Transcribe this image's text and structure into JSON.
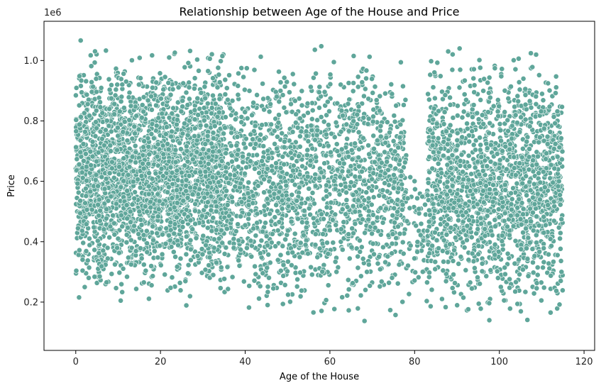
{
  "chart_data": {
    "type": "scatter",
    "title": "Relationship between Age of the House and Price",
    "xlabel": "Age of the House",
    "ylabel": "Price",
    "y_offset_label": "1e6",
    "xlim": [
      -7.5,
      122.5
    ],
    "ylim": [
      40000,
      1130000
    ],
    "x_ticks": [
      0,
      20,
      40,
      60,
      80,
      100,
      120
    ],
    "x_tick_labels": [
      "0",
      "20",
      "40",
      "60",
      "80",
      "100",
      "120"
    ],
    "y_ticks": [
      200000,
      400000,
      600000,
      800000,
      1000000
    ],
    "y_tick_labels": [
      "0.2",
      "0.4",
      "0.6",
      "0.8",
      "1.0"
    ],
    "grid": false,
    "marker_color": "#5fa69a",
    "marker_edge_color": "#ffffff",
    "point_density": [
      {
        "age_range": [
          0,
          35
        ],
        "price_range": [
          150000,
          1090000
        ],
        "density": "very high"
      },
      {
        "age_range": [
          35,
          78
        ],
        "price_range": [
          90000,
          1090000
        ],
        "density": "high"
      },
      {
        "age_range": [
          78,
          83
        ],
        "price_range": [
          150000,
          700000
        ],
        "density": "low"
      },
      {
        "age_range": [
          83,
          115
        ],
        "price_range": [
          80000,
          1090000
        ],
        "density": "high"
      }
    ]
  }
}
